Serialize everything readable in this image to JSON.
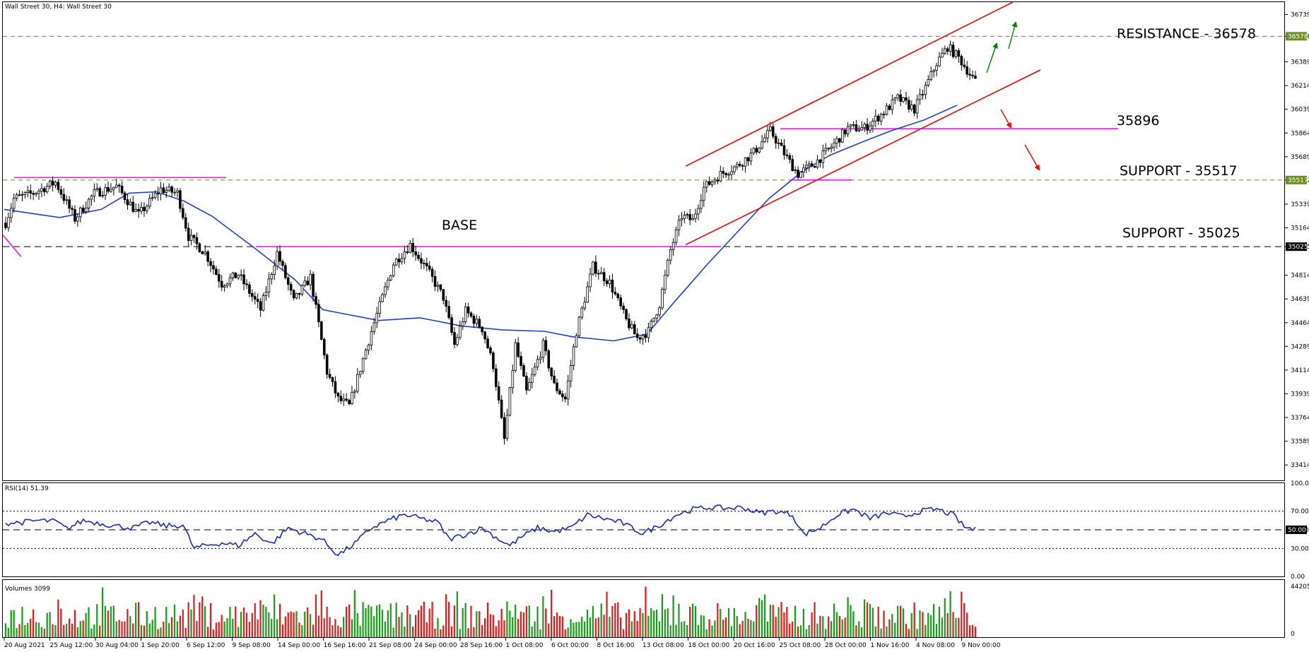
{
  "chart_data": {
    "type": "candlestick",
    "title": "Wall Street 30, H4:  Wall Street 30",
    "price_axis": {
      "range": [
        33300,
        36830
      ],
      "ticks": [
        36739,
        36578,
        36389,
        36214,
        36039,
        35864,
        35689,
        35517,
        35339,
        35164,
        35025,
        34814,
        34639,
        34464,
        34289,
        34114,
        33939,
        33764,
        33589,
        33414
      ],
      "highlight_ticks": [
        {
          "value": 36578,
          "label": "36578",
          "color": "#6b8e23"
        },
        {
          "value": 35517,
          "label": "35517",
          "color": "#6b8e23"
        },
        {
          "value": 35025,
          "label": "35025",
          "color": "#000000"
        }
      ]
    },
    "time_labels": [
      "20 Aug 2021",
      "25 Aug 12:00",
      "30 Aug 04:00",
      "1 Sep 20:00",
      "6 Sep 12:00",
      "9 Sep 08:00",
      "14 Sep 00:00",
      "16 Sep 16:00",
      "21 Sep 08:00",
      "24 Sep 00:00",
      "28 Sep 16:00",
      "1 Oct 08:00",
      "6 Oct 00:00",
      "8 Oct 16:00",
      "13 Oct 08:00",
      "18 Oct 00:00",
      "20 Oct 16:00",
      "25 Oct 08:00",
      "28 Oct 00:00",
      "1 Nov 16:00",
      "4 Nov 08:00",
      "9 Nov 00:00"
    ],
    "price_path": [
      [
        0,
        35200
      ],
      [
        3,
        35380
      ],
      [
        10,
        35420
      ],
      [
        18,
        35500
      ],
      [
        25,
        35230
      ],
      [
        32,
        35420
      ],
      [
        40,
        35470
      ],
      [
        48,
        35260
      ],
      [
        56,
        35450
      ],
      [
        62,
        35420
      ],
      [
        66,
        35100
      ],
      [
        72,
        34980
      ],
      [
        78,
        34750
      ],
      [
        84,
        34820
      ],
      [
        92,
        34560
      ],
      [
        98,
        34980
      ],
      [
        104,
        34620
      ],
      [
        110,
        34800
      ],
      [
        116,
        34100
      ],
      [
        120,
        33900
      ],
      [
        124,
        33850
      ],
      [
        132,
        34400
      ],
      [
        140,
        34900
      ],
      [
        146,
        35040
      ],
      [
        152,
        34860
      ],
      [
        158,
        34650
      ],
      [
        162,
        34300
      ],
      [
        166,
        34550
      ],
      [
        172,
        34420
      ],
      [
        176,
        34150
      ],
      [
        180,
        33600
      ],
      [
        184,
        34300
      ],
      [
        188,
        33950
      ],
      [
        194,
        34300
      ],
      [
        198,
        34000
      ],
      [
        202,
        33900
      ],
      [
        206,
        34400
      ],
      [
        212,
        34880
      ],
      [
        218,
        34760
      ],
      [
        224,
        34480
      ],
      [
        228,
        34350
      ],
      [
        232,
        34400
      ],
      [
        236,
        34600
      ],
      [
        240,
        35000
      ],
      [
        244,
        35250
      ],
      [
        248,
        35220
      ],
      [
        252,
        35460
      ],
      [
        258,
        35560
      ],
      [
        264,
        35620
      ],
      [
        270,
        35720
      ],
      [
        276,
        35880
      ],
      [
        282,
        35680
      ],
      [
        286,
        35560
      ],
      [
        292,
        35640
      ],
      [
        298,
        35760
      ],
      [
        304,
        35900
      ],
      [
        310,
        35900
      ],
      [
        316,
        36000
      ],
      [
        322,
        36120
      ],
      [
        328,
        36040
      ],
      [
        332,
        36200
      ],
      [
        336,
        36380
      ],
      [
        340,
        36500
      ],
      [
        344,
        36420
      ],
      [
        350,
        36240
      ]
    ],
    "moving_average": [
      [
        0,
        35300
      ],
      [
        20,
        35240
      ],
      [
        35,
        35300
      ],
      [
        45,
        35420
      ],
      [
        55,
        35430
      ],
      [
        65,
        35360
      ],
      [
        75,
        35250
      ],
      [
        90,
        35020
      ],
      [
        105,
        34780
      ],
      [
        115,
        34560
      ],
      [
        125,
        34520
      ],
      [
        135,
        34480
      ],
      [
        150,
        34500
      ],
      [
        165,
        34440
      ],
      [
        180,
        34410
      ],
      [
        195,
        34400
      ],
      [
        205,
        34360
      ],
      [
        220,
        34330
      ],
      [
        232,
        34380
      ],
      [
        242,
        34620
      ],
      [
        254,
        34900
      ],
      [
        264,
        35120
      ],
      [
        276,
        35380
      ],
      [
        288,
        35580
      ],
      [
        298,
        35700
      ],
      [
        310,
        35800
      ],
      [
        320,
        35880
      ],
      [
        332,
        35960
      ],
      [
        344,
        36070
      ]
    ],
    "annotations": [
      {
        "label": "RESISTANCE - 36578",
        "value": 36578,
        "line": "dashed-olive"
      },
      {
        "label": "35896",
        "value": 35896,
        "line": "solid-magenta"
      },
      {
        "label": "SUPPORT - 35517",
        "value": 35517,
        "line": "dashed-olive"
      },
      {
        "label": "SUPPORT - 35025",
        "value": 35025,
        "line": "dashed-black"
      },
      {
        "label": "BASE",
        "value": 35025,
        "line": "solid-magenta"
      }
    ],
    "channel": {
      "upper": [
        [
          246,
          35620
        ],
        [
          364,
          36830
        ]
      ],
      "lower": [
        [
          246,
          35040
        ],
        [
          374,
          36330
        ]
      ]
    },
    "arrows": [
      {
        "color": "#008000",
        "direction": "up"
      },
      {
        "color": "#008000",
        "direction": "up"
      },
      {
        "color": "#ff0000",
        "direction": "down"
      },
      {
        "color": "#ff0000",
        "direction": "down"
      }
    ],
    "rsi": {
      "label": "RSI(14) 51.39",
      "range": [
        0,
        100
      ],
      "levels": [
        70,
        50,
        30
      ],
      "ticks": [
        "100.00",
        "70.00",
        "50.00",
        "30.00",
        "0.00"
      ],
      "current_label": "50.00",
      "values": [
        [
          0,
          57
        ],
        [
          6,
          58
        ],
        [
          12,
          60
        ],
        [
          18,
          59
        ],
        [
          22,
          51
        ],
        [
          28,
          60
        ],
        [
          34,
          57
        ],
        [
          40,
          54
        ],
        [
          46,
          52
        ],
        [
          52,
          58
        ],
        [
          58,
          54
        ],
        [
          64,
          55
        ],
        [
          68,
          30
        ],
        [
          72,
          33
        ],
        [
          78,
          36
        ],
        [
          84,
          33
        ],
        [
          90,
          46
        ],
        [
          96,
          35
        ],
        [
          102,
          52
        ],
        [
          108,
          46
        ],
        [
          114,
          40
        ],
        [
          120,
          23
        ],
        [
          126,
          35
        ],
        [
          132,
          52
        ],
        [
          138,
          60
        ],
        [
          144,
          66
        ],
        [
          150,
          62
        ],
        [
          156,
          58
        ],
        [
          160,
          40
        ],
        [
          166,
          45
        ],
        [
          172,
          52
        ],
        [
          178,
          40
        ],
        [
          182,
          33
        ],
        [
          186,
          42
        ],
        [
          192,
          52
        ],
        [
          198,
          48
        ],
        [
          204,
          52
        ],
        [
          210,
          66
        ],
        [
          216,
          62
        ],
        [
          222,
          58
        ],
        [
          226,
          52
        ],
        [
          230,
          46
        ],
        [
          236,
          55
        ],
        [
          242,
          66
        ],
        [
          248,
          72
        ],
        [
          254,
          74
        ],
        [
          260,
          73
        ],
        [
          266,
          74
        ],
        [
          272,
          68
        ],
        [
          278,
          70
        ],
        [
          284,
          66
        ],
        [
          288,
          45
        ],
        [
          294,
          52
        ],
        [
          300,
          66
        ],
        [
          306,
          72
        ],
        [
          312,
          62
        ],
        [
          318,
          68
        ],
        [
          324,
          64
        ],
        [
          330,
          70
        ],
        [
          336,
          72
        ],
        [
          342,
          66
        ],
        [
          346,
          53
        ],
        [
          350,
          50
        ]
      ]
    },
    "volumes": {
      "label": "Volumes 3099",
      "range": [
        0,
        44205
      ],
      "ticks": [
        "44205",
        "0"
      ]
    }
  }
}
